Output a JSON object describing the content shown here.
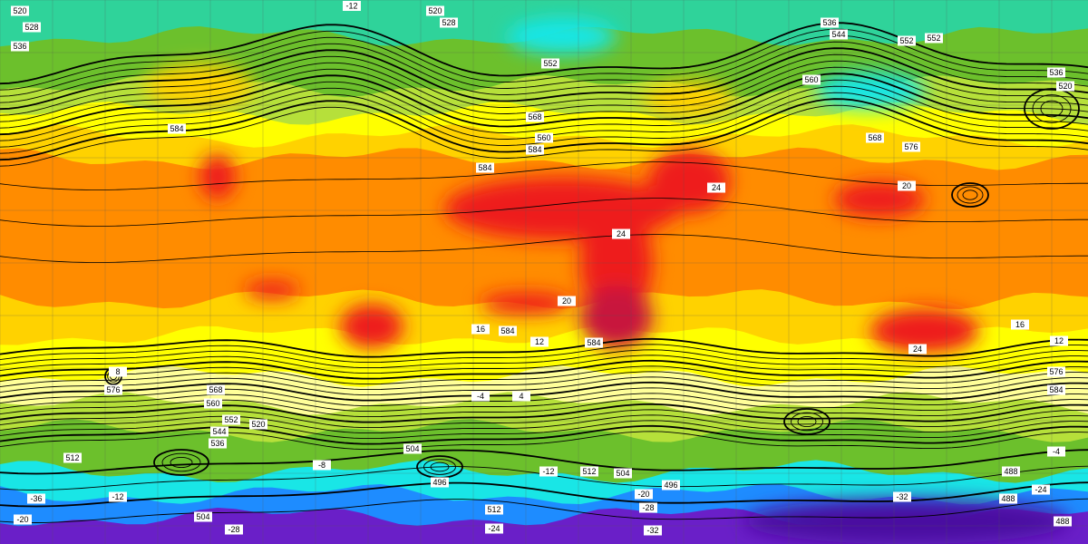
{
  "map": {
    "colors": {
      "purple": "#6a1fc8",
      "blue": "#1e8cff",
      "cyan": "#19e6e6",
      "teal": "#2fd39a",
      "green": "#6cc02c",
      "light_green": "#b6e03a",
      "yellow": "#ffff00",
      "light_yellow": "#ffff99",
      "gold": "#ffd200",
      "orange": "#ff8c00",
      "dark_orange": "#ff6a00",
      "red": "#ee1a1a",
      "dark_red": "#c8143c"
    },
    "height_labels": [
      "520",
      "528",
      "536",
      "552",
      "520",
      "528",
      "536",
      "544",
      "552",
      "560",
      "568",
      "576",
      "584",
      "584",
      "584",
      "584",
      "584",
      "576",
      "568",
      "560",
      "552",
      "544",
      "536",
      "520",
      "512",
      "504",
      "496",
      "504",
      "512",
      "488",
      "488",
      "488",
      "496",
      "504",
      "512",
      "520",
      "536",
      "552",
      "560",
      "568",
      "576",
      "584"
    ],
    "temp_labels": [
      "-12",
      "-12",
      "-12",
      "-20",
      "-20",
      "-8",
      "-4",
      "-4",
      "-24",
      "-24",
      "-28",
      "-28",
      "-32",
      "-32",
      "-36",
      "16",
      "20",
      "24",
      "24",
      "24",
      "20",
      "16",
      "12",
      "12",
      "8",
      "4"
    ]
  }
}
